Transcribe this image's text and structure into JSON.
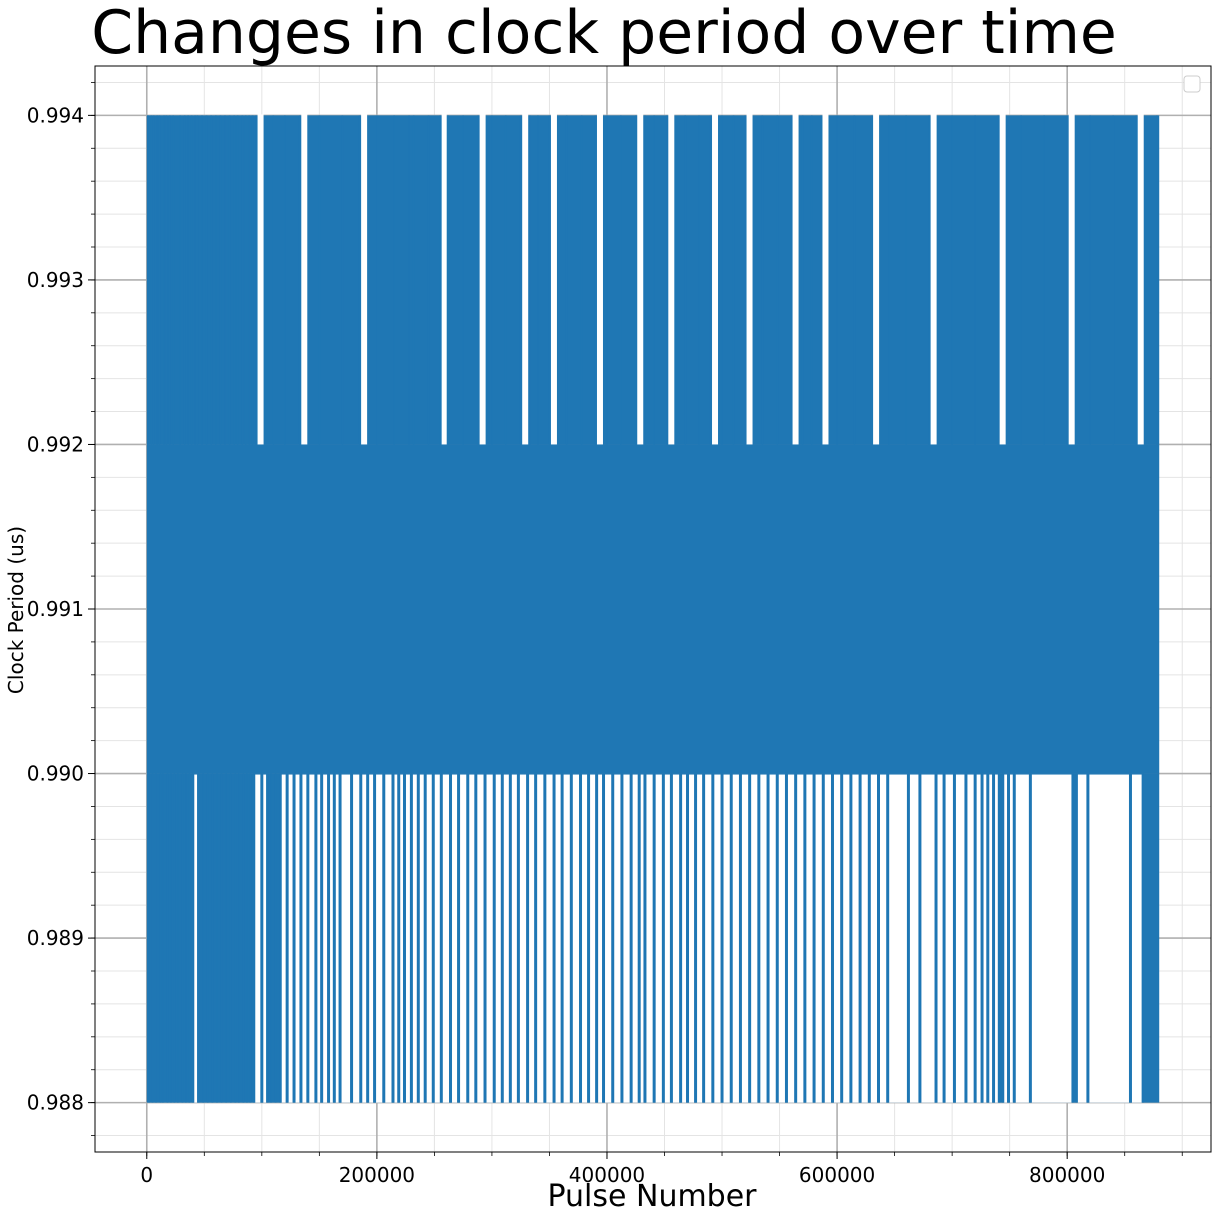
{
  "chart_data": {
    "type": "line",
    "title": "Changes in clock period over time",
    "xlabel": "Pulse Number",
    "ylabel": "Clock Period (us)",
    "xlim": [
      -45000,
      925000
    ],
    "ylim": [
      0.9877,
      0.9943
    ],
    "x_ticks": [
      0,
      200000,
      400000,
      600000,
      800000
    ],
    "y_ticks": [
      0.988,
      0.989,
      0.99,
      0.991,
      0.992,
      0.993,
      0.994
    ],
    "x_tick_labels": [
      "0",
      "200000",
      "400000",
      "600000",
      "800000"
    ],
    "y_tick_labels": [
      "0.988",
      "0.989",
      "0.990",
      "0.991",
      "0.992",
      "0.993",
      "0.994"
    ],
    "x_minor_step": 50000,
    "y_minor_step": 0.0002,
    "grid": true,
    "minor_grid": true,
    "legend": "top-right (empty)",
    "series": [
      {
        "color": "#1f77b4",
        "x_range": [
          0,
          880000
        ],
        "dense_band": [
          0.99,
          0.992
        ],
        "levels": [
          0.988,
          0.99,
          0.992,
          0.994
        ],
        "upper_spikes_x": [
          1000,
          4000,
          6000,
          9000,
          11000,
          15000,
          17000,
          20000,
          23000,
          29000,
          33000,
          36000,
          39000,
          42000,
          44000,
          48000,
          52000,
          56000,
          60000,
          64000,
          68000,
          72000,
          76000,
          79000,
          83000,
          86000,
          89000,
          92000,
          95000,
          110000,
          120000,
          133000,
          150000,
          170000,
          185000,
          200000,
          215000,
          228000,
          232000,
          245000,
          255000,
          262000,
          275000,
          288000,
          300000,
          312000,
          325000,
          333000,
          340000,
          350000,
          365000,
          378000,
          390000,
          400000,
          412000,
          425000,
          433000,
          441000,
          452000,
          468000,
          480000,
          490000,
          500000,
          510000,
          520000,
          535000,
          548000,
          560000,
          570000,
          578000,
          586000,
          600000,
          615000,
          630000,
          645000,
          660000,
          680000,
          700000,
          720000,
          740000,
          760000,
          780000,
          800000,
          820000,
          840000,
          860000,
          878000
        ],
        "lower_spikes_x": [
          2000,
          5000,
          8000,
          12000,
          14000,
          18000,
          21000,
          24000,
          27000,
          31000,
          34000,
          37000,
          40000,
          45000,
          49000,
          53000,
          57000,
          61000,
          65000,
          69000,
          73000,
          77000,
          80000,
          84000,
          87000,
          90000,
          93000,
          100000,
          105000,
          108000,
          112000,
          116000,
          122000,
          128000,
          134000,
          140000,
          147000,
          152000,
          158000,
          163000,
          168000,
          178000,
          186000,
          192000,
          198000,
          206000,
          214000,
          219000,
          224000,
          230000,
          236000,
          242000,
          249000,
          256000,
          264000,
          271000,
          279000,
          286000,
          294000,
          302000,
          309000,
          316000,
          323000,
          331000,
          338000,
          346000,
          354000,
          361000,
          369000,
          377000,
          384000,
          391000,
          397000,
          405000,
          413000,
          421000,
          428000,
          433000,
          441000,
          449000,
          456000,
          464000,
          470000,
          477000,
          484000,
          492000,
          500000,
          508000,
          516000,
          524000,
          532000,
          540000,
          548000,
          556000,
          564000,
          572000,
          580000,
          588000,
          596000,
          604000,
          612000,
          620000,
          628000,
          636000,
          644000,
          662000,
          672000,
          686000,
          693000,
          702000,
          712000,
          720000,
          726000,
          731000,
          736000,
          741000,
          744000,
          749000,
          754000,
          768000,
          805000,
          808000,
          818000,
          855000,
          866000
        ]
      }
    ]
  }
}
